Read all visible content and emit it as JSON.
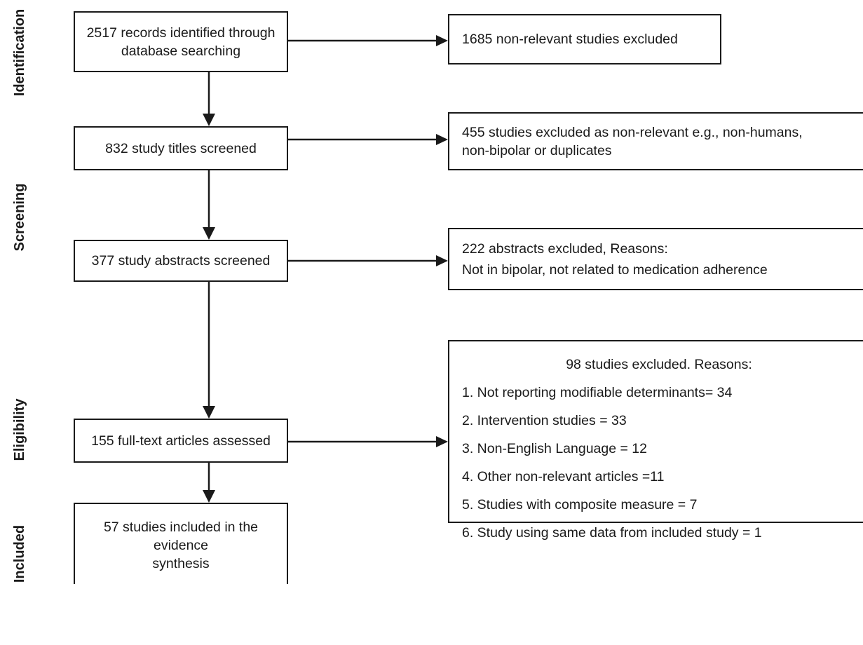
{
  "stages": {
    "identification": "Identification",
    "screening": "Screening",
    "eligibility": "Eligibility",
    "included": "Included"
  },
  "main_boxes": {
    "records_identified": [
      "2517 records identified through",
      "database searching"
    ],
    "titles_screened": "832 study titles screened",
    "abstracts_screened": "377 study abstracts screened",
    "fulltext_assessed": "155 full-text articles assessed",
    "included": [
      "57 studies included in the evidence",
      "synthesis"
    ]
  },
  "exclusion_boxes": {
    "nonrelevant_excluded": "1685 non-relevant studies excluded",
    "titles_excluded": [
      "455 studies excluded as non-relevant e.g., non-humans,",
      "non-bipolar or duplicates"
    ],
    "abstracts_excluded": {
      "heading": "222 abstracts excluded, Reasons:",
      "reason": "Not in bipolar, not related to medication adherence"
    },
    "fulltext_excluded": {
      "heading": "98 studies excluded. Reasons:",
      "reasons": [
        "1. Not reporting modifiable determinants= 34",
        "2. Intervention studies = 33",
        "3. Non-English Language = 12",
        "4. Other non-relevant articles =11",
        "5. Studies with composite measure = 7",
        "6. Study using same data from included study = 1"
      ]
    }
  },
  "colors": {
    "ink": "#1a1a1a",
    "background": "#ffffff"
  }
}
